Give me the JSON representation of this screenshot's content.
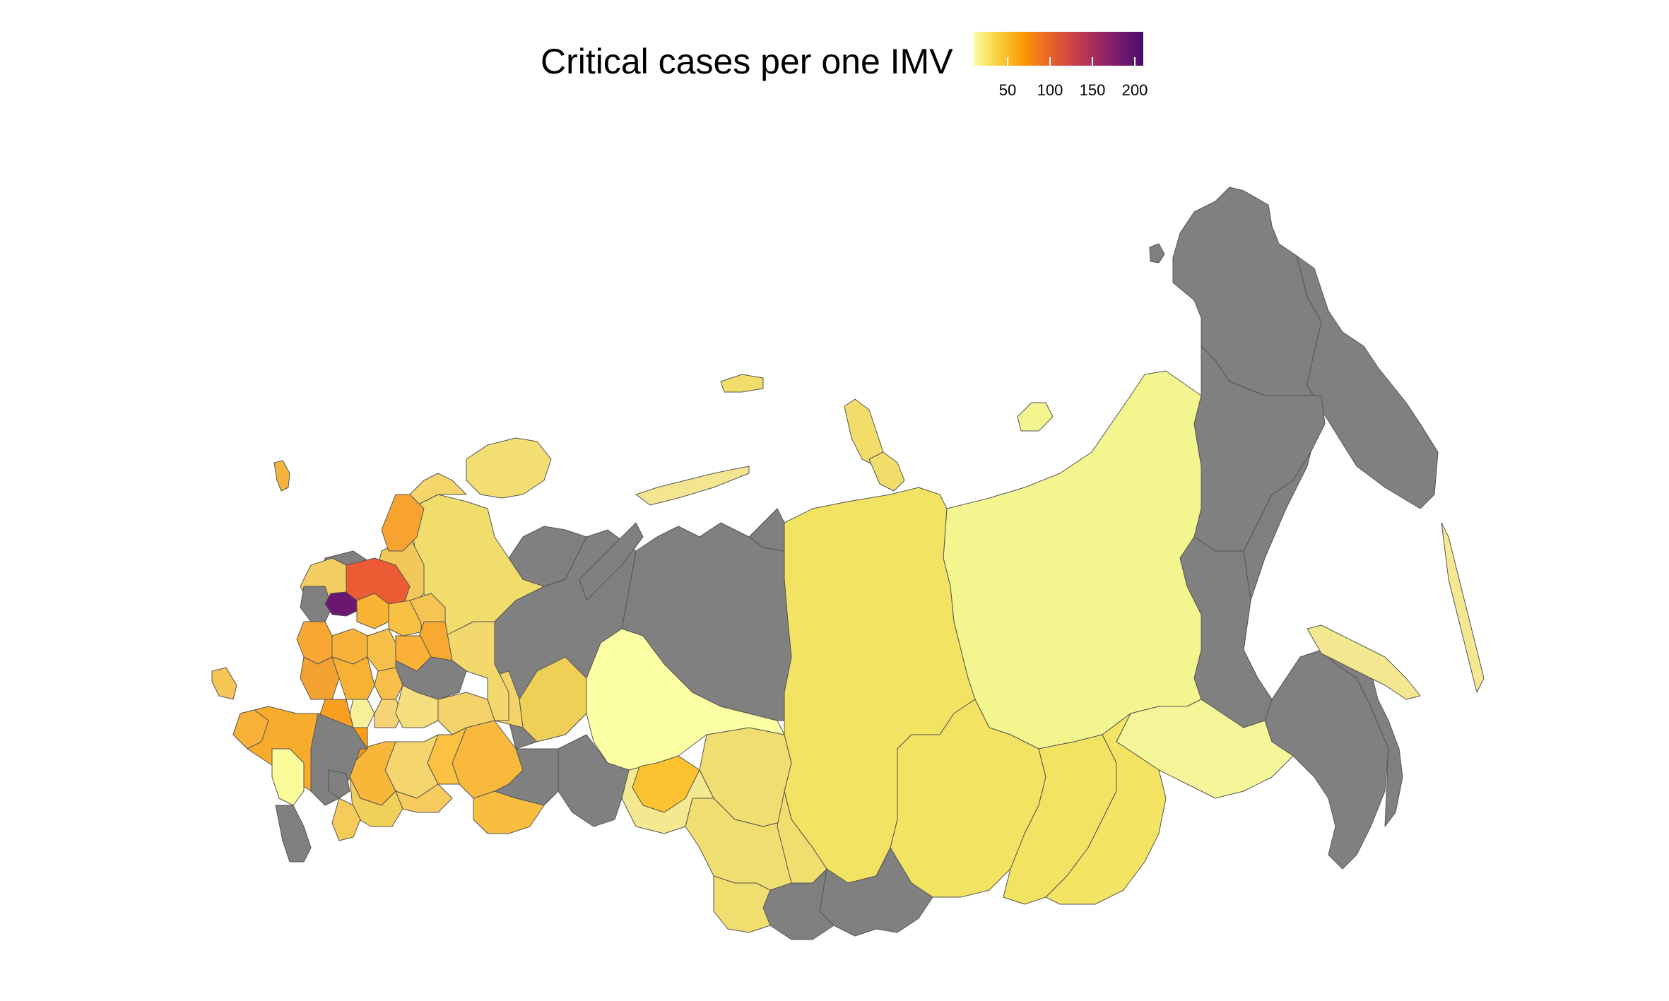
{
  "title": "Critical cases per one IMV",
  "legend": {
    "ticks": [
      {
        "value": 50,
        "label": "50"
      },
      {
        "value": 100,
        "label": "100"
      },
      {
        "value": 150,
        "label": "150"
      },
      {
        "value": 200,
        "label": "200"
      }
    ],
    "range": [
      10,
      210
    ],
    "colors": [
      "#fcffa4",
      "#f7d13d",
      "#fb9b06",
      "#ed6925",
      "#cf4446",
      "#a52c60",
      "#781c6d",
      "#4a0c6b"
    ]
  },
  "colors": {
    "no_data": "#808080",
    "border": "#555555",
    "background": "#ffffff"
  }
}
